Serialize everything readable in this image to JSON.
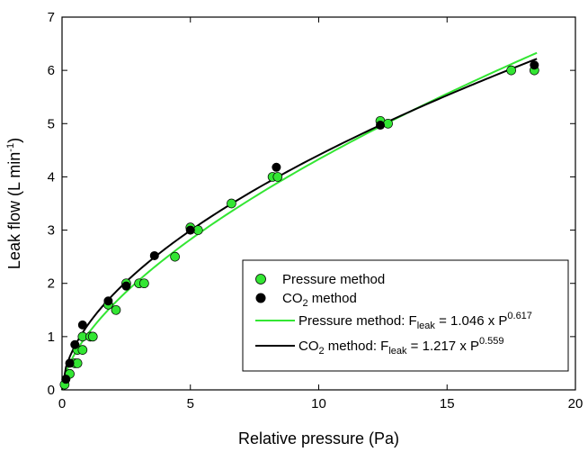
{
  "chart_data": {
    "type": "scatter",
    "xlabel": "Relative pressure (Pa)",
    "ylabel": {
      "main": "Leak flow (L min",
      "sup": "-1",
      "close": ")"
    },
    "xlim": [
      0,
      20
    ],
    "ylim": [
      0,
      7
    ],
    "xticks": [
      0,
      5,
      10,
      15,
      20
    ],
    "yticks": [
      0,
      1,
      2,
      3,
      4,
      5,
      6,
      7
    ],
    "grid": false,
    "legend_position": "bottom-right",
    "series": [
      {
        "name": "Pressure method",
        "kind": "points",
        "color": "#33e633",
        "points": [
          [
            0.1,
            0.1
          ],
          [
            0.3,
            0.3
          ],
          [
            0.5,
            0.5
          ],
          [
            0.6,
            0.5
          ],
          [
            0.6,
            0.75
          ],
          [
            0.8,
            0.75
          ],
          [
            0.8,
            1.0
          ],
          [
            1.1,
            1.0
          ],
          [
            1.2,
            1.0
          ],
          [
            1.8,
            1.6
          ],
          [
            2.1,
            1.5
          ],
          [
            2.5,
            2.0
          ],
          [
            3.0,
            2.0
          ],
          [
            3.2,
            2.0
          ],
          [
            4.4,
            2.5
          ],
          [
            5.0,
            3.05
          ],
          [
            5.3,
            3.0
          ],
          [
            6.6,
            3.5
          ],
          [
            8.2,
            4.0
          ],
          [
            8.4,
            4.0
          ],
          [
            12.4,
            5.05
          ],
          [
            12.7,
            5.0
          ],
          [
            17.5,
            6.0
          ],
          [
            18.4,
            6.0
          ]
        ]
      },
      {
        "name": "CO2 method",
        "label_main": "CO",
        "label_sub": "2",
        "label_rest": " method",
        "kind": "points",
        "color": "#000000",
        "points": [
          [
            0.15,
            0.2
          ],
          [
            0.3,
            0.5
          ],
          [
            0.5,
            0.85
          ],
          [
            0.8,
            1.22
          ],
          [
            1.8,
            1.67
          ],
          [
            2.5,
            1.95
          ],
          [
            3.6,
            2.52
          ],
          [
            5.0,
            3.0
          ],
          [
            8.35,
            4.18
          ],
          [
            12.4,
            4.97
          ],
          [
            18.4,
            6.1
          ]
        ]
      },
      {
        "name": "Pressure method: Fleak = 1.046 x P0.617",
        "label_main": "Pressure method: F",
        "label_sub": "leak",
        "label_rest": " = 1.046 x P",
        "label_sup": "0.617",
        "kind": "fit",
        "color": "#33e633",
        "coef": 1.046,
        "exponent": 0.617,
        "x_range": [
          0,
          18.5
        ]
      },
      {
        "name": "CO2 method: Fleak = 1.217 x P0.559",
        "label_main": "CO",
        "label_sub": "2",
        "label_rest": " method: F",
        "label_sub2": "leak",
        "label_rest2": " = 1.217 x P",
        "label_sup": "0.559",
        "kind": "fit",
        "color": "#000000",
        "coef": 1.217,
        "exponent": 0.559,
        "x_range": [
          0,
          18.5
        ]
      }
    ]
  }
}
